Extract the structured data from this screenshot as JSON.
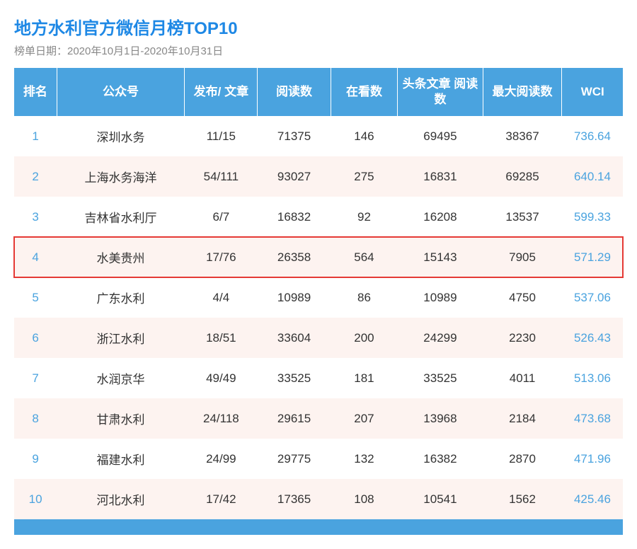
{
  "title": "地方水利官方微信月榜TOP10",
  "subtitle": "榜单日期：2020年10月1日-2020年10月31日",
  "colors": {
    "title": "#1e88e5",
    "subtitle": "#888888",
    "header_bg": "#4aa3df",
    "header_text": "#ffffff",
    "row_even_bg": "#fdf3f0",
    "row_odd_bg": "#ffffff",
    "highlight_border": "#e53935",
    "rank_text": "#4aa3df",
    "wci_text": "#4aa3df",
    "body_text": "#333333",
    "footer_bar": "#4aa3df"
  },
  "typography": {
    "title_fontsize": 24,
    "subtitle_fontsize": 15,
    "header_fontsize": 17,
    "cell_fontsize": 17
  },
  "table": {
    "type": "table",
    "columns": [
      {
        "key": "rank",
        "label": "排名",
        "width_pct": 7
      },
      {
        "key": "account",
        "label": "公众号",
        "width_pct": 21
      },
      {
        "key": "publish",
        "label": "发布/\n文章",
        "width_pct": 12
      },
      {
        "key": "reads",
        "label": "阅读数",
        "width_pct": 12
      },
      {
        "key": "looks",
        "label": "在看数",
        "width_pct": 11
      },
      {
        "key": "headline",
        "label": "头条文章\n阅读数",
        "width_pct": 14
      },
      {
        "key": "maxread",
        "label": "最大阅读数",
        "width_pct": 13
      },
      {
        "key": "wci",
        "label": "WCI",
        "width_pct": 10
      }
    ],
    "rows": [
      {
        "rank": "1",
        "account": "深圳水务",
        "publish": "11/15",
        "reads": "71375",
        "looks": "146",
        "headline": "69495",
        "maxread": "38367",
        "wci": "736.64",
        "highlight": false
      },
      {
        "rank": "2",
        "account": "上海水务海洋",
        "publish": "54/111",
        "reads": "93027",
        "looks": "275",
        "headline": "16831",
        "maxread": "69285",
        "wci": "640.14",
        "highlight": false
      },
      {
        "rank": "3",
        "account": "吉林省水利厅",
        "publish": "6/7",
        "reads": "16832",
        "looks": "92",
        "headline": "16208",
        "maxread": "13537",
        "wci": "599.33",
        "highlight": false
      },
      {
        "rank": "4",
        "account": "水美贵州",
        "publish": "17/76",
        "reads": "26358",
        "looks": "564",
        "headline": "15143",
        "maxread": "7905",
        "wci": "571.29",
        "highlight": true
      },
      {
        "rank": "5",
        "account": "广东水利",
        "publish": "4/4",
        "reads": "10989",
        "looks": "86",
        "headline": "10989",
        "maxread": "4750",
        "wci": "537.06",
        "highlight": false
      },
      {
        "rank": "6",
        "account": "浙江水利",
        "publish": "18/51",
        "reads": "33604",
        "looks": "200",
        "headline": "24299",
        "maxread": "2230",
        "wci": "526.43",
        "highlight": false
      },
      {
        "rank": "7",
        "account": "水润京华",
        "publish": "49/49",
        "reads": "33525",
        "looks": "181",
        "headline": "33525",
        "maxread": "4011",
        "wci": "513.06",
        "highlight": false
      },
      {
        "rank": "8",
        "account": "甘肃水利",
        "publish": "24/118",
        "reads": "29615",
        "looks": "207",
        "headline": "13968",
        "maxread": "2184",
        "wci": "473.68",
        "highlight": false
      },
      {
        "rank": "9",
        "account": "福建水利",
        "publish": "24/99",
        "reads": "29775",
        "looks": "132",
        "headline": "16382",
        "maxread": "2870",
        "wci": "471.96",
        "highlight": false
      },
      {
        "rank": "10",
        "account": "河北水利",
        "publish": "17/42",
        "reads": "17365",
        "looks": "108",
        "headline": "10541",
        "maxread": "1562",
        "wci": "425.46",
        "highlight": false
      }
    ]
  }
}
